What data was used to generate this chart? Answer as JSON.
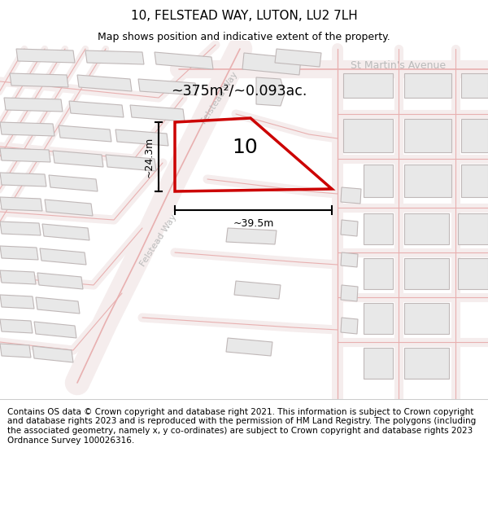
{
  "title": "10, FELSTEAD WAY, LUTON, LU2 7LH",
  "subtitle": "Map shows position and indicative extent of the property.",
  "footer": "Contains OS data © Crown copyright and database right 2021. This information is subject to Crown copyright and database rights 2023 and is reproduced with the permission of HM Land Registry. The polygons (including the associated geometry, namely x, y co-ordinates) are subject to Crown copyright and database rights 2023 Ordnance Survey 100026316.",
  "area_text": "~375m²/~0.093ac.",
  "plot_number": "10",
  "dim_width": "~39.5m",
  "dim_height": "~24.3m",
  "street_felstead": "Felstead Way",
  "street_stmartin": "St Martin's Avenue",
  "title_fontsize": 11,
  "subtitle_fontsize": 9,
  "footer_fontsize": 7.5,
  "plot_color": "#cc0000",
  "building_fill": "#e8e8e8",
  "building_edge": "#c0b8b8",
  "road_fill": "#f5e8e8",
  "road_edge": "#e8a8a8",
  "map_bg": "#faf6f6",
  "street_label_color": "#bbbbbb",
  "dim_color": "#000000"
}
